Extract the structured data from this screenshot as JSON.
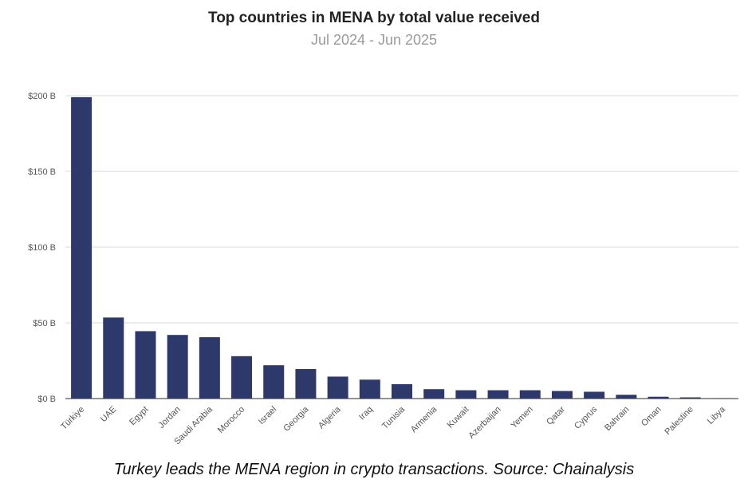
{
  "chart_data": {
    "type": "bar",
    "title": "Top countries in MENA by total value received",
    "subtitle": "Jul 2024 - Jun 2025",
    "categories": [
      "Türkiye",
      "UAE",
      "Egypt",
      "Jordan",
      "Saudi Arabia",
      "Morocco",
      "Israel",
      "Georgia",
      "Algeria",
      "Iraq",
      "Tunisia",
      "Armenia",
      "Kuwait",
      "Azerbaijan",
      "Yemen",
      "Qatar",
      "Cyprus",
      "Bahrain",
      "Oman",
      "Palestine",
      "Libya"
    ],
    "values": [
      199,
      53.5,
      44.5,
      42,
      40.5,
      28,
      22,
      19.5,
      14.5,
      12.5,
      9.5,
      6.2,
      5.5,
      5.5,
      5.5,
      5.0,
      4.5,
      2.5,
      1.2,
      0.8,
      0.2
    ],
    "unit": "B",
    "ylim": [
      0,
      200
    ],
    "yticks": [
      "$0 B",
      "$50 B",
      "$100 B",
      "$150 B",
      "$200 B"
    ],
    "ytick_values": [
      0,
      50,
      100,
      150,
      200
    ],
    "xlabel": "",
    "ylabel": "",
    "bar_color": "#2d386b",
    "grid": true
  },
  "caption": "Turkey leads the MENA region in crypto transactions. Source: Chainalysis"
}
